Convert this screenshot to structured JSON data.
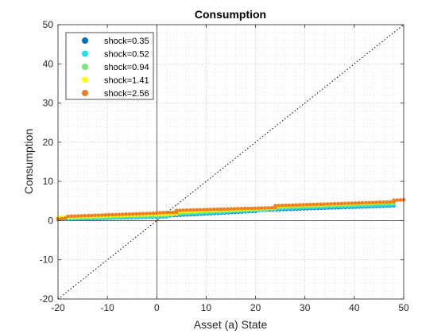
{
  "chart_data": {
    "type": "scatter",
    "title": "Consumption",
    "xlabel": "Asset (a) State",
    "ylabel": "Consumption",
    "xlim": [
      -20,
      50
    ],
    "ylim": [
      -20,
      50
    ],
    "xticks": [
      -20,
      -10,
      0,
      10,
      20,
      30,
      40,
      50
    ],
    "yticks": [
      -20,
      -10,
      0,
      10,
      20,
      30,
      40,
      50
    ],
    "xtick_labels": [
      "-20",
      "-10",
      "0",
      "10",
      "20",
      "30",
      "40",
      "50"
    ],
    "ytick_labels": [
      "-20",
      "-10",
      "0",
      "10",
      "20",
      "30",
      "40",
      "50"
    ],
    "grid": "major and minor, dotted",
    "legend_position": "top-left",
    "reference_lines": [
      {
        "kind": "45-degree line",
        "style": "dotted",
        "color": "#000000",
        "x": [
          -20,
          50
        ],
        "y": [
          -20,
          50
        ]
      },
      {
        "kind": "zero line x=0",
        "style": "solid",
        "color": "#000000"
      },
      {
        "kind": "zero line y=0",
        "style": "solid",
        "color": "#000000"
      }
    ],
    "series": [
      {
        "name": "shock=0.35",
        "color": "#0072bd",
        "segments": [
          {
            "x": [
              -20,
              2
            ],
            "y": [
              0.3,
              1.0
            ]
          },
          {
            "x": [
              2,
              20
            ],
            "y": [
              1.2,
              2.4
            ]
          },
          {
            "x": [
              20,
              48
            ],
            "y": [
              2.6,
              3.8
            ]
          }
        ]
      },
      {
        "name": "shock=0.52",
        "color": "#1fe0f0",
        "segments": [
          {
            "x": [
              -20,
              2
            ],
            "y": [
              0.4,
              1.1
            ]
          },
          {
            "x": [
              2,
              22
            ],
            "y": [
              1.4,
              2.7
            ]
          },
          {
            "x": [
              22,
              48
            ],
            "y": [
              2.9,
              4.0
            ]
          }
        ]
      },
      {
        "name": "shock=0.94",
        "color": "#76e87a",
        "segments": [
          {
            "x": [
              -20,
              3
            ],
            "y": [
              0.6,
              1.4
            ]
          },
          {
            "x": [
              3,
              24
            ],
            "y": [
              1.8,
              3.0
            ]
          },
          {
            "x": [
              24,
              48
            ],
            "y": [
              3.3,
              4.4
            ]
          }
        ]
      },
      {
        "name": "shock=1.41",
        "color": "#ffff00",
        "segments": [
          {
            "x": [
              -20,
              4
            ],
            "y": [
              0.8,
              1.7
            ]
          },
          {
            "x": [
              4,
              24
            ],
            "y": [
              2.2,
              3.2
            ]
          },
          {
            "x": [
              24,
              48
            ],
            "y": [
              3.6,
              4.7
            ]
          }
        ]
      },
      {
        "name": "shock=2.56",
        "color": "#f07f1e",
        "segments": [
          {
            "x": [
              -20,
              -18.6
            ],
            "y": [
              0.4,
              0.6
            ]
          },
          {
            "x": [
              -18,
              0
            ],
            "y": [
              1.1,
              1.9
            ]
          },
          {
            "x": [
              0,
              4
            ],
            "y": [
              2.0,
              2.1
            ]
          },
          {
            "x": [
              4,
              24
            ],
            "y": [
              2.6,
              3.3
            ]
          },
          {
            "x": [
              24,
              48
            ],
            "y": [
              3.8,
              4.8
            ]
          },
          {
            "x": [
              48,
              50
            ],
            "y": [
              5.2,
              5.3
            ]
          }
        ]
      }
    ]
  }
}
